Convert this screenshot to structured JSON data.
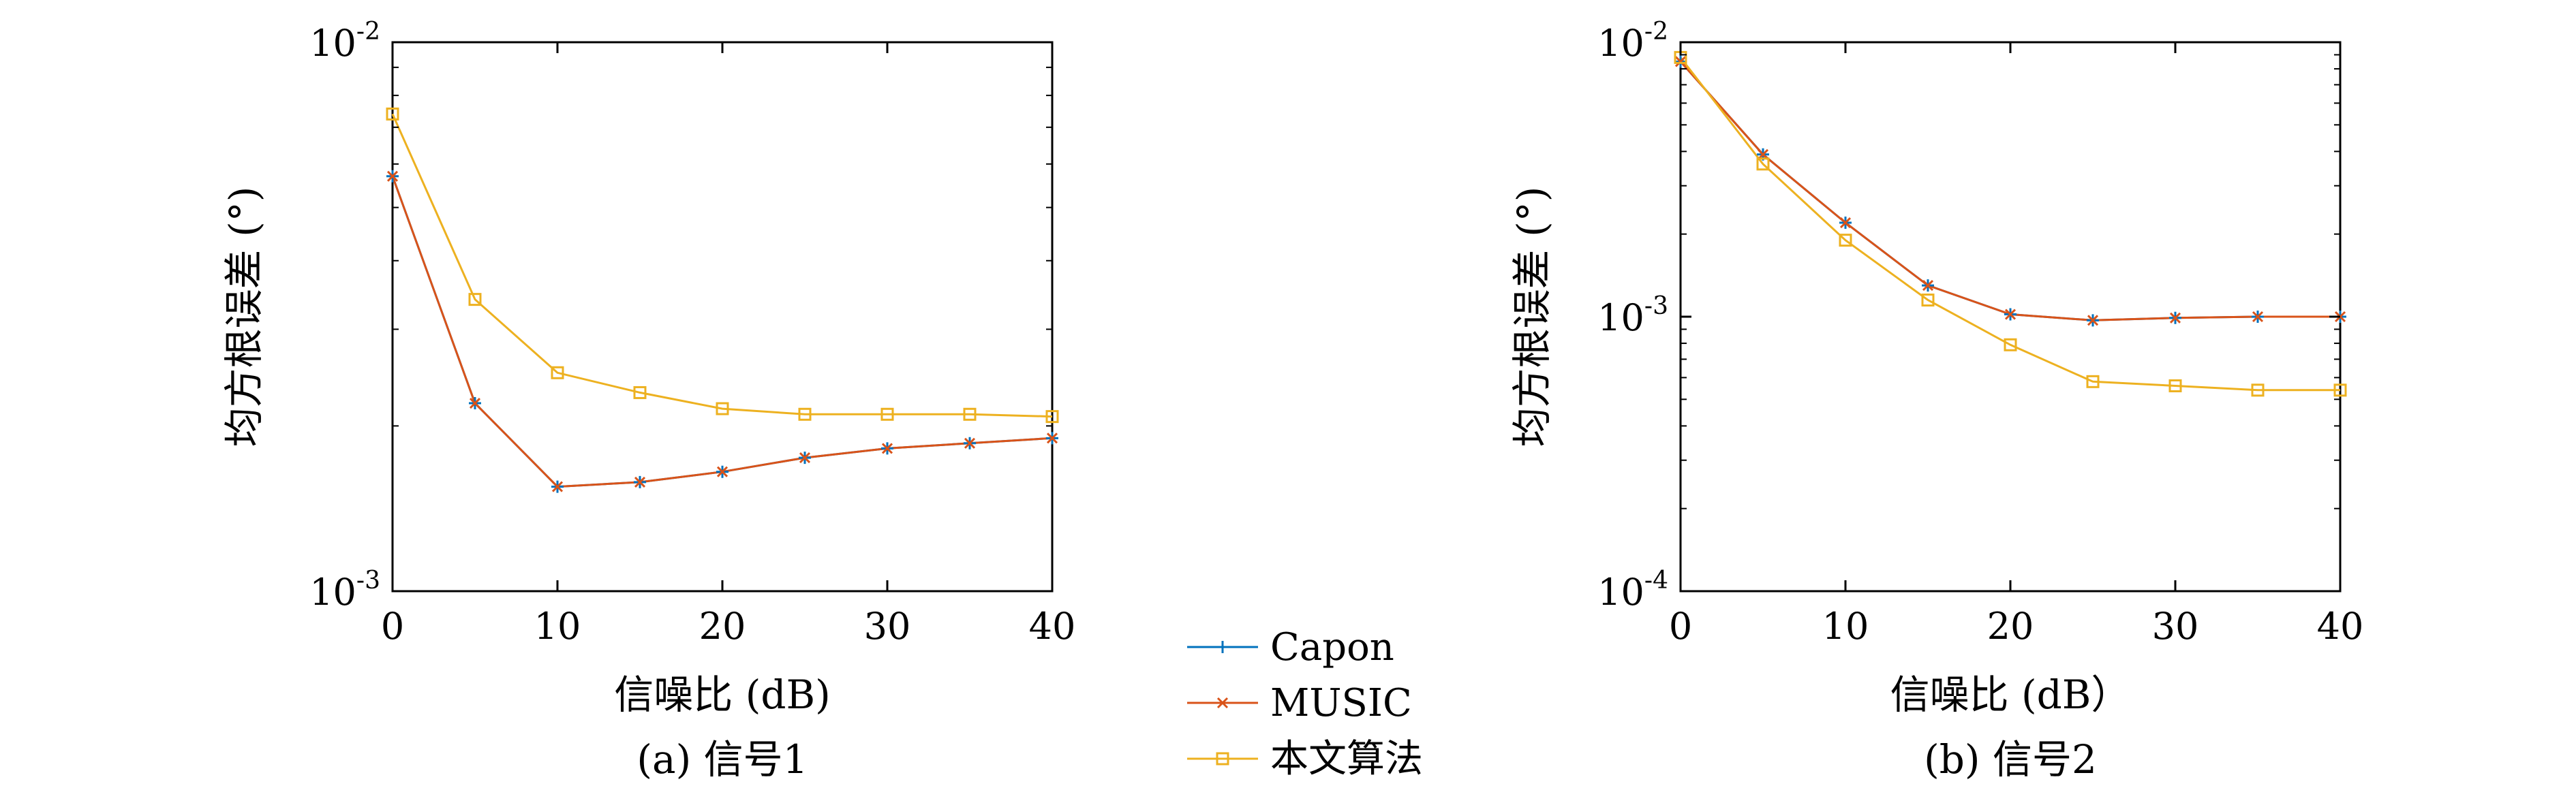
{
  "chart_data": [
    {
      "type": "line",
      "title": "",
      "caption": "(a) 信号1",
      "xlabel": "信噪比 (dB)",
      "ylabel": "均方根误差 (°)",
      "x": [
        0,
        5,
        10,
        15,
        20,
        25,
        30,
        35,
        40
      ],
      "xlim": [
        0,
        40
      ],
      "xticks": [
        "0",
        "10",
        "20",
        "30",
        "40"
      ],
      "yscale": "log",
      "ylim": [
        0.001,
        0.01
      ],
      "yticks": [
        {
          "base": "10",
          "exp": "-3",
          "value": 0.001
        },
        {
          "base": "10",
          "exp": "-2",
          "value": 0.01
        }
      ],
      "grid": false,
      "series": [
        {
          "name": "Capon",
          "color": "#0072BD",
          "marker": "plus",
          "values": [
            0.0057,
            0.0022,
            0.00155,
            0.00158,
            0.00165,
            0.00175,
            0.00182,
            0.00186,
            0.0019
          ]
        },
        {
          "name": "MUSIC",
          "color": "#D95319",
          "marker": "x",
          "values": [
            0.0057,
            0.0022,
            0.00155,
            0.00158,
            0.00165,
            0.00175,
            0.00182,
            0.00186,
            0.0019
          ]
        },
        {
          "name": "本文算法",
          "color": "#EDB120",
          "marker": "square",
          "values": [
            0.0074,
            0.0034,
            0.0025,
            0.0023,
            0.00215,
            0.0021,
            0.0021,
            0.0021,
            0.00208
          ]
        }
      ]
    },
    {
      "type": "line",
      "title": "",
      "caption": "(b) 信号2",
      "xlabel": "信噪比 (dB）",
      "ylabel": "均方根误差 (°)",
      "x": [
        0,
        5,
        10,
        15,
        20,
        25,
        30,
        35,
        40
      ],
      "xlim": [
        0,
        40
      ],
      "xticks": [
        "0",
        "10",
        "20",
        "30",
        "40"
      ],
      "yscale": "log",
      "ylim": [
        0.0001,
        0.01
      ],
      "yticks": [
        {
          "base": "10",
          "exp": "-4",
          "value": 0.0001
        },
        {
          "base": "10",
          "exp": "-3",
          "value": 0.001
        },
        {
          "base": "10",
          "exp": "-2",
          "value": 0.01
        }
      ],
      "grid": false,
      "series": [
        {
          "name": "Capon",
          "color": "#0072BD",
          "marker": "plus",
          "values": [
            0.0085,
            0.0039,
            0.0022,
            0.0013,
            0.00102,
            0.00097,
            0.00099,
            0.001,
            0.001
          ]
        },
        {
          "name": "MUSIC",
          "color": "#D95319",
          "marker": "x",
          "values": [
            0.0085,
            0.0039,
            0.0022,
            0.0013,
            0.00102,
            0.00097,
            0.00099,
            0.001,
            0.001
          ]
        },
        {
          "name": "本文算法",
          "color": "#EDB120",
          "marker": "square",
          "values": [
            0.0088,
            0.0036,
            0.0019,
            0.00115,
            0.00079,
            0.00058,
            0.00056,
            0.00054,
            0.00054
          ]
        }
      ]
    }
  ],
  "legend": {
    "placement": "bottom-center",
    "items": [
      {
        "label": "Capon",
        "color": "#0072BD",
        "marker": "plus"
      },
      {
        "label": "MUSIC",
        "color": "#D95319",
        "marker": "x"
      },
      {
        "label": "本文算法",
        "color": "#EDB120",
        "marker": "square"
      }
    ]
  }
}
